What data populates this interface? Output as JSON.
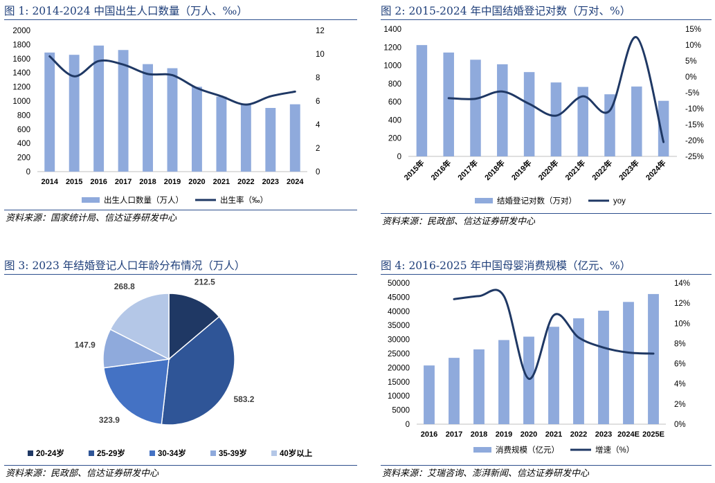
{
  "charts": [
    {
      "title": "图 1:  2014-2024 中国出生人口数量（万人、‰）",
      "source": "资料来源：国家统计局、信达证券研发中心",
      "chart_data": {
        "type": "bar",
        "categories": [
          "2014",
          "2015",
          "2016",
          "2017",
          "2018",
          "2019",
          "2020",
          "2021",
          "2022",
          "2023",
          "2024"
        ],
        "series": [
          {
            "name": "出生人口数量（万人）",
            "type": "bar",
            "axis": "left",
            "color": "#8faadc",
            "values": [
              1687,
              1655,
              1786,
              1723,
              1523,
              1465,
              1202,
              1062,
              956,
              902,
              954
            ]
          },
          {
            "name": "出生率（‰）",
            "type": "line",
            "axis": "right",
            "color": "#1f3864",
            "values": [
              9.8,
              8.1,
              9.4,
              9.1,
              8.3,
              8.2,
              7.1,
              6.4,
              5.7,
              6.4,
              6.8
            ]
          }
        ],
        "ylim": [
          0,
          2000
        ],
        "yticks": [
          "0",
          "200",
          "400",
          "600",
          "800",
          "1000",
          "1200",
          "1400",
          "1600",
          "1800",
          "2000"
        ],
        "y2lim": [
          0,
          12
        ],
        "y2ticks": [
          "0",
          "2",
          "4",
          "6",
          "8",
          "10",
          "12"
        ],
        "legend_position": "bottom"
      }
    },
    {
      "title": "图 2:  2015-2024 年中国结婚登记对数（万对、%）",
      "source": "资料来源：民政部、信达证券研发中心",
      "chart_data": {
        "type": "bar",
        "categories": [
          "2015年",
          "2016年",
          "2017年",
          "2018年",
          "2019年",
          "2020年",
          "2021年",
          "2022年",
          "2023年",
          "2024年"
        ],
        "series": [
          {
            "name": "结婚登记对数（万对）",
            "type": "bar",
            "axis": "left",
            "color": "#8faadc",
            "values": [
              1224,
              1142,
              1063,
              1013,
              927,
              813,
              764,
              683,
              768,
              611
            ]
          },
          {
            "name": "yoy",
            "type": "line",
            "axis": "right",
            "color": "#1f3864",
            "values": [
              null,
              -6.7,
              -6.9,
              -4.6,
              -8.5,
              -12.2,
              -6.1,
              -10.6,
              12.4,
              -20.5
            ]
          }
        ],
        "ylim": [
          0,
          1400
        ],
        "yticks": [
          "0",
          "200",
          "400",
          "600",
          "800",
          "1000",
          "1200",
          "1400"
        ],
        "y2lim": [
          -25,
          15
        ],
        "y2ticks": [
          "-25%",
          "-20%",
          "-15%",
          "-10%",
          "-5%",
          "0%",
          "5%",
          "10%",
          "15%"
        ],
        "legend_position": "bottom"
      }
    },
    {
      "title": "图 3:  2023 年结婚登记人口年龄分布情况（万人）",
      "source": "资料来源：民政部、信达证券研发中心",
      "chart_data": {
        "type": "pie",
        "categories": [
          "20-24岁",
          "25-29岁",
          "30-34岁",
          "35-39岁",
          "40岁以上"
        ],
        "values": [
          212.5,
          583.2,
          323.9,
          147.9,
          268.8
        ],
        "labels": [
          "212.5",
          "583.2",
          "323.9",
          "147.9",
          "268.8"
        ],
        "colors": [
          "#1f3864",
          "#2f5597",
          "#4472c4",
          "#8faadc",
          "#b4c7e7"
        ],
        "legend_position": "bottom"
      }
    },
    {
      "title": "图 4:  2016-2025 年中国母婴消费规模（亿元、%）",
      "source": "资料来源：艾瑞咨询、澎湃新闻、信达证券研发中心",
      "chart_data": {
        "type": "bar",
        "categories": [
          "2016",
          "2017",
          "2018",
          "2019",
          "2020",
          "2021",
          "2022",
          "2023",
          "2024E",
          "2025E"
        ],
        "series": [
          {
            "name": "消费规模（亿元）",
            "type": "bar",
            "axis": "left",
            "color": "#8faadc",
            "values": [
              20800,
              23500,
              26500,
              29800,
              31000,
              34500,
              37500,
              40200,
              43300,
              46100
            ]
          },
          {
            "name": "增速（%）",
            "type": "line",
            "axis": "right",
            "color": "#1f3864",
            "values": [
              null,
              12.4,
              12.7,
              12.7,
              4.5,
              10.8,
              8.6,
              7.6,
              7.1,
              7.0
            ]
          }
        ],
        "ylim": [
          0,
          50000
        ],
        "yticks": [
          "0",
          "5000",
          "10000",
          "15000",
          "20000",
          "25000",
          "30000",
          "35000",
          "40000",
          "45000",
          "50000"
        ],
        "y2lim": [
          0,
          14
        ],
        "y2ticks": [
          "0%",
          "2%",
          "4%",
          "6%",
          "8%",
          "10%",
          "12%",
          "14%"
        ],
        "legend_position": "bottom"
      }
    }
  ]
}
